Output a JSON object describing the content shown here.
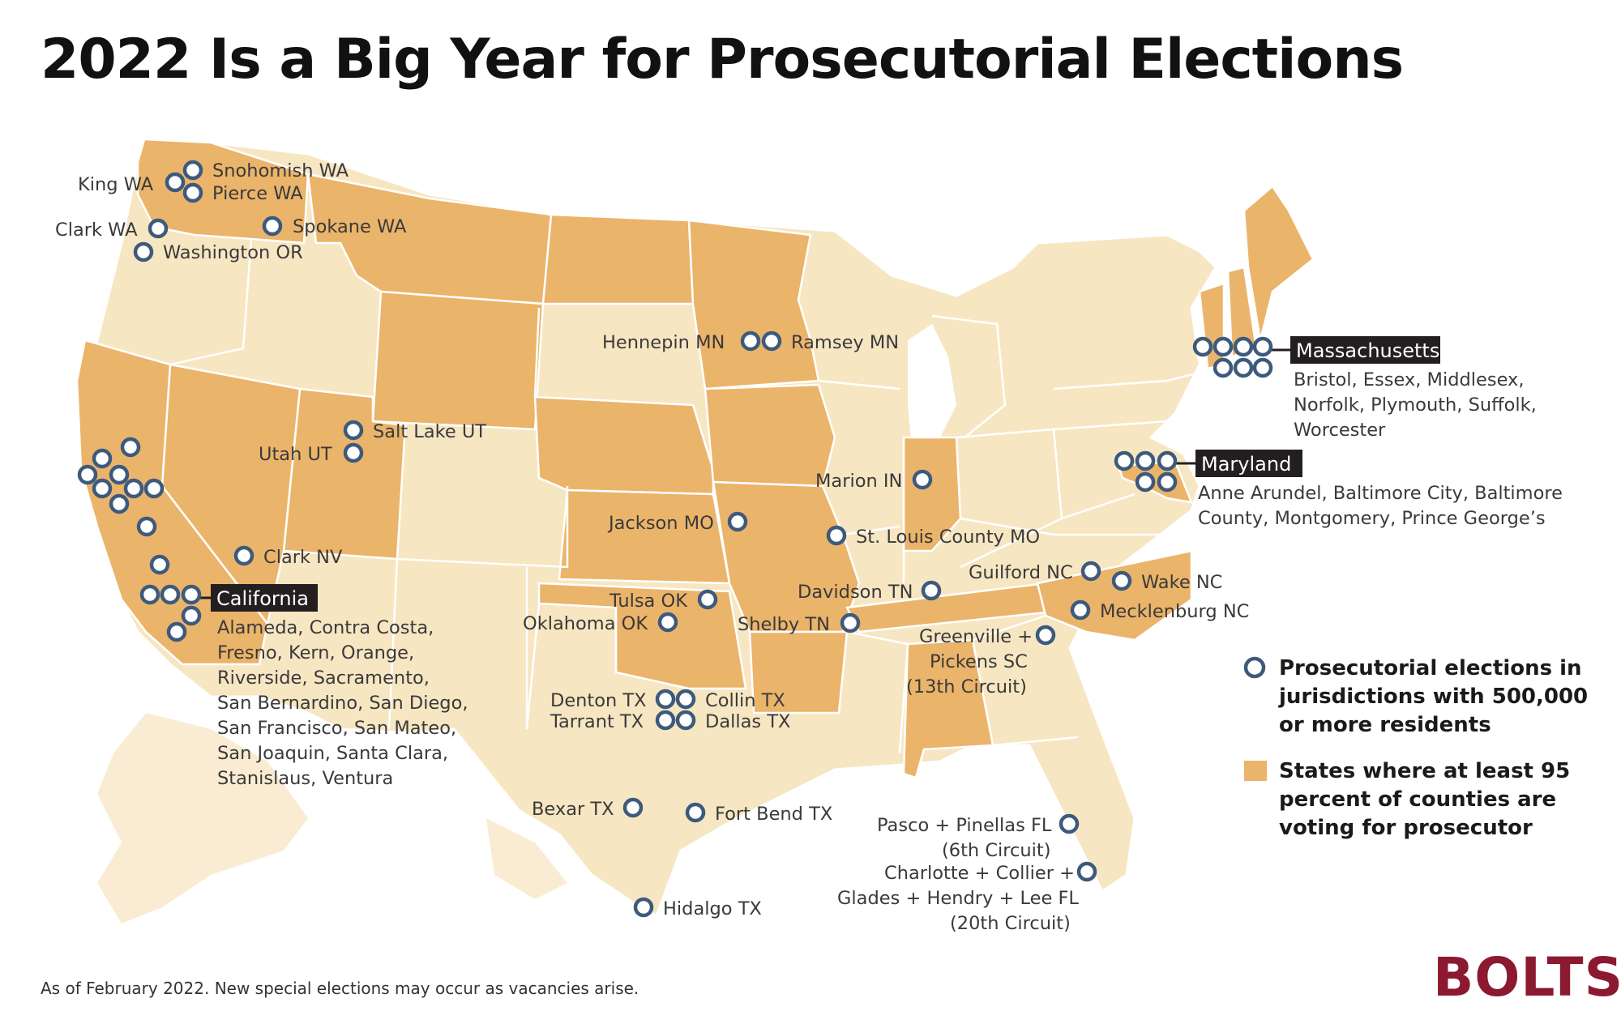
{
  "title": "2022 Is a Big Year for Prosecutorial Elections",
  "footnote": "As of February 2022. New special elections may occur as vacancies arise.",
  "logo": "BOLTS",
  "colors": {
    "active_state": "#ebb46b",
    "other_state": "#f7e6c2",
    "state_border": "#ffffff",
    "marker_stroke": "#3d5a7c",
    "marker_fill": "#ffffff",
    "tag_background": "#231f20"
  },
  "legend": {
    "marker_label": [
      "Prosecutorial elections in",
      "jurisdictions with 500,000",
      "or more residents"
    ],
    "swatch_label": [
      "States where at least 95",
      "percent of counties are",
      "voting for prosecutor"
    ]
  },
  "labels": {
    "snohomish": "Snohomish WA",
    "king": "King WA",
    "pierce": "Pierce WA",
    "clark_wa": "Clark WA",
    "spokane": "Spokane WA",
    "washington_or": "Washington OR",
    "hennepin": "Hennepin MN",
    "ramsey": "Ramsey MN",
    "salt_lake": "Salt Lake UT",
    "utah": "Utah UT",
    "marion": "Marion IN",
    "jackson": "Jackson MO",
    "st_louis": "St. Louis County MO",
    "clark_nv": "Clark NV",
    "guilford": "Guilford NC",
    "wake": "Wake NC",
    "davidson": "Davidson TN",
    "mecklenburg": "Mecklenburg NC",
    "tulsa": "Tulsa OK",
    "oklahoma": "Oklahoma OK",
    "shelby": "Shelby TN",
    "greenville": [
      "Greenville +",
      "Pickens SC",
      "(13th Circuit)"
    ],
    "denton": "Denton TX",
    "collin": "Collin TX",
    "tarrant": "Tarrant TX",
    "dallas": "Dallas TX",
    "bexar": "Bexar TX",
    "fort_bend": "Fort Bend TX",
    "hidalgo": "Hidalgo TX",
    "pasco": [
      "Pasco + Pinellas FL",
      "(6th Circuit)"
    ],
    "charlotte": [
      "Charlotte + Collier +",
      "Glades + Hendry + Lee FL",
      "(20th Circuit)"
    ]
  },
  "groups": {
    "massachusetts": {
      "name": "Massachusetts",
      "counties": [
        "Bristol, Essex, Middlesex,",
        "Norfolk, Plymouth, Suffolk,",
        "Worcester"
      ]
    },
    "maryland": {
      "name": "Maryland",
      "counties": [
        "Anne Arundel, Baltimore City, Baltimore",
        "County, Montgomery, Prince George’s"
      ]
    },
    "california": {
      "name": "California",
      "counties": [
        "Alameda, Contra Costa,",
        "Fresno, Kern, Orange,",
        "Riverside, Sacramento,",
        "San Bernardino, San Diego,",
        "San Francisco, San Mateo,",
        "San Joaquin, Santa Clara,",
        "Stanislaus, Ventura"
      ]
    }
  },
  "states_active": [
    "Washington",
    "Montana",
    "Minnesota",
    "North Dakota",
    "California",
    "Nevada",
    "Utah",
    "Wyoming",
    "Nebraska",
    "Kansas",
    "Iowa",
    "Missouri",
    "Oklahoma",
    "Arkansas",
    "Tennessee",
    "North Carolina",
    "Indiana",
    "Alabama",
    "Vermont",
    "New Hampshire",
    "Maine",
    "Maryland"
  ]
}
